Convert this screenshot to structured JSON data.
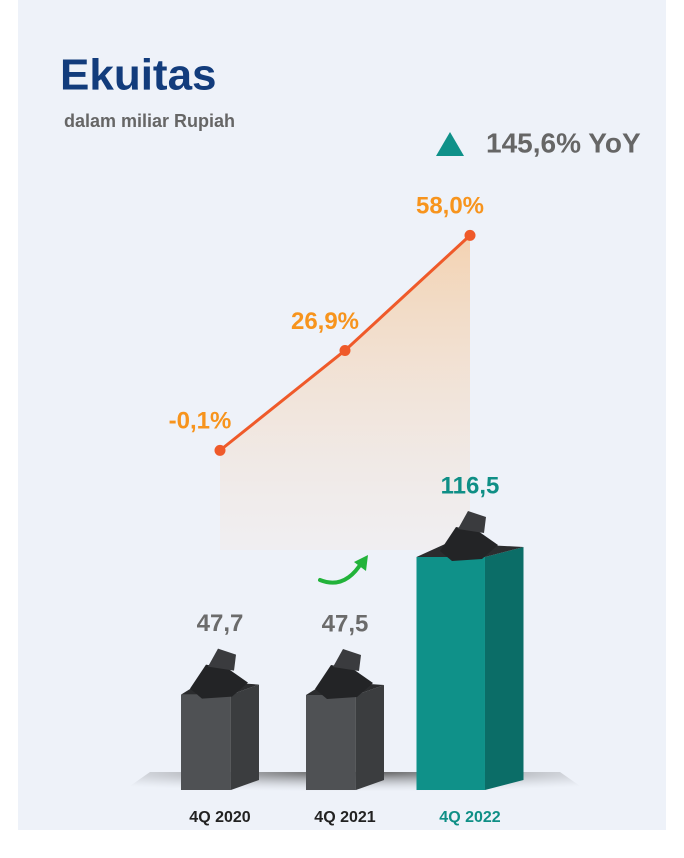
{
  "chart_data": {
    "type": "bar",
    "title": "Ekuitas",
    "subtitle": "dalam miliar Rupiah",
    "annotation": "145,6% YoY",
    "categories": [
      "4Q 2020",
      "4Q 2021",
      "4Q 2022"
    ],
    "series": [
      {
        "type": "bar",
        "values": [
          47.7,
          47.5,
          116.5
        ],
        "value_labels": [
          "47,7",
          "47,5",
          "116,5"
        ],
        "colors": [
          "#4f5154",
          "#4f5154",
          "#0f9189"
        ],
        "label_colors": [
          "#6b6b6b",
          "#6b6b6b",
          "#0f8f86"
        ]
      },
      {
        "type": "line",
        "values": [
          -0.1,
          26.9,
          58.0
        ],
        "value_labels": [
          "-0,1%",
          "26,9%",
          "58,0%"
        ],
        "color": "#ef5a2a",
        "label_color": "#f7941d"
      }
    ]
  }
}
